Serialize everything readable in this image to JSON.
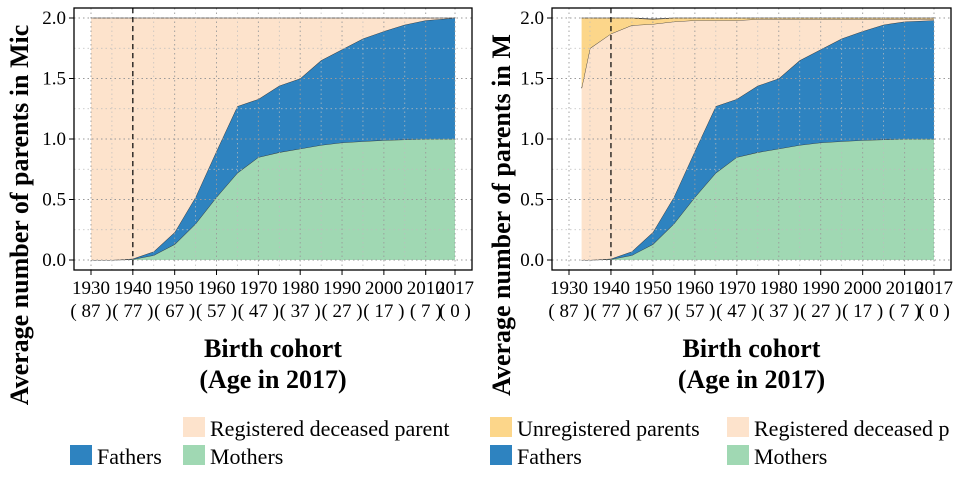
{
  "colors": {
    "registered_deceased": "#FDE3CC",
    "fathers": "#2E83C0",
    "mothers": "#A0D8B3",
    "unregistered": "#FCD68A"
  },
  "chart_data": [
    {
      "type": "area",
      "ylabel": "Average number of parents in Mic",
      "xlabel_line1": "Birth cohort",
      "xlabel_line2": "(Age in 2017)",
      "xlim": [
        1930,
        2017
      ],
      "ylim": [
        0,
        2
      ],
      "yticks": [
        "0.0",
        "0.5",
        "1.0",
        "1.5",
        "2.0"
      ],
      "ytick_values": [
        0,
        0.5,
        1.0,
        1.5,
        2.0
      ],
      "xticks": [
        "1930",
        "1940",
        "1950",
        "1960",
        "1970",
        "1980",
        "1990",
        "2000",
        "2010",
        "2017"
      ],
      "xtick_values": [
        1930,
        1940,
        1950,
        1960,
        1970,
        1980,
        1990,
        2000,
        2010,
        2017
      ],
      "xtick_ages": [
        "( 87 )",
        "( 77 )",
        "( 67 )",
        "( 57 )",
        "( 47 )",
        "( 37 )",
        "( 27 )",
        "( 17 )",
        "( 7 )",
        "( 0 )"
      ],
      "vline": 1940,
      "grid": true,
      "x": [
        1930,
        1935,
        1940,
        1945,
        1950,
        1955,
        1960,
        1965,
        1970,
        1975,
        1980,
        1985,
        1990,
        1995,
        2000,
        2005,
        2010,
        2017
      ],
      "series": [
        {
          "name": "Mothers",
          "values": [
            0,
            0,
            0.005,
            0.04,
            0.13,
            0.3,
            0.52,
            0.72,
            0.85,
            0.89,
            0.92,
            0.95,
            0.97,
            0.98,
            0.99,
            0.995,
            1.0,
            1.0
          ]
        },
        {
          "name": "Fathers",
          "values": [
            0,
            0,
            0.005,
            0.03,
            0.1,
            0.22,
            0.38,
            0.55,
            0.48,
            0.55,
            0.58,
            0.7,
            0.77,
            0.85,
            0.9,
            0.95,
            0.98,
            1.0
          ]
        },
        {
          "name": "Registered deceased parent",
          "values": [
            2,
            2,
            1.99,
            1.93,
            1.77,
            1.48,
            1.1,
            0.73,
            0.67,
            0.56,
            0.5,
            0.35,
            0.26,
            0.17,
            0.11,
            0.055,
            0.02,
            0
          ]
        }
      ],
      "legend": [
        {
          "key": "registered_deceased",
          "label": "Registered deceased parent"
        },
        {
          "key": "fathers",
          "label": "Fathers"
        },
        {
          "key": "mothers",
          "label": "Mothers"
        }
      ]
    },
    {
      "type": "area",
      "ylabel": "Average number of parents in M",
      "xlabel_line1": "Birth cohort",
      "xlabel_line2": "(Age in 2017)",
      "xlim": [
        1930,
        2017
      ],
      "ylim": [
        0,
        2
      ],
      "yticks": [
        "0.0",
        "0.5",
        "1.0",
        "1.5",
        "2.0"
      ],
      "ytick_values": [
        0,
        0.5,
        1.0,
        1.5,
        2.0
      ],
      "xticks": [
        "1930",
        "1940",
        "1950",
        "1960",
        "1970",
        "1980",
        "1990",
        "2000",
        "2010",
        "2017"
      ],
      "xtick_values": [
        1930,
        1940,
        1950,
        1960,
        1970,
        1980,
        1990,
        2000,
        2010,
        2017
      ],
      "xtick_ages": [
        "( 87 )",
        "( 77 )",
        "( 67 )",
        "( 57 )",
        "( 47 )",
        "( 37 )",
        "( 27 )",
        "( 17 )",
        "( 7 )",
        "( 0 )"
      ],
      "vline": 1940,
      "grid": true,
      "x": [
        1933,
        1935,
        1940,
        1945,
        1950,
        1955,
        1960,
        1965,
        1970,
        1975,
        1980,
        1985,
        1990,
        1995,
        2000,
        2005,
        2010,
        2017
      ],
      "series": [
        {
          "name": "Mothers",
          "values": [
            0,
            0,
            0.005,
            0.04,
            0.13,
            0.3,
            0.52,
            0.72,
            0.85,
            0.89,
            0.92,
            0.95,
            0.97,
            0.98,
            0.99,
            0.995,
            1.0,
            1.0
          ]
        },
        {
          "name": "Fathers",
          "values": [
            0,
            0,
            0.005,
            0.03,
            0.1,
            0.22,
            0.38,
            0.55,
            0.48,
            0.55,
            0.58,
            0.7,
            0.77,
            0.85,
            0.9,
            0.95,
            0.97,
            0.98
          ]
        },
        {
          "name": "Registered deceased parent",
          "values": [
            1.42,
            1.75,
            1.86,
            1.87,
            1.72,
            1.45,
            1.08,
            0.71,
            0.65,
            0.55,
            0.49,
            0.34,
            0.25,
            0.16,
            0.1,
            0.045,
            0.02,
            0.01
          ]
        },
        {
          "name": "Unregistered parents",
          "values": [
            0.58,
            0.25,
            0.13,
            0.06,
            0.04,
            0.03,
            0.02,
            0.02,
            0.02,
            0.01,
            0.01,
            0.01,
            0.01,
            0.01,
            0.01,
            0.01,
            0.01,
            0.01
          ]
        }
      ],
      "legend": [
        {
          "key": "unregistered",
          "label": "Unregistered parents"
        },
        {
          "key": "registered_deceased",
          "label": "Registered deceased p"
        },
        {
          "key": "fathers",
          "label": "Fathers"
        },
        {
          "key": "mothers",
          "label": "Mothers"
        }
      ]
    }
  ]
}
